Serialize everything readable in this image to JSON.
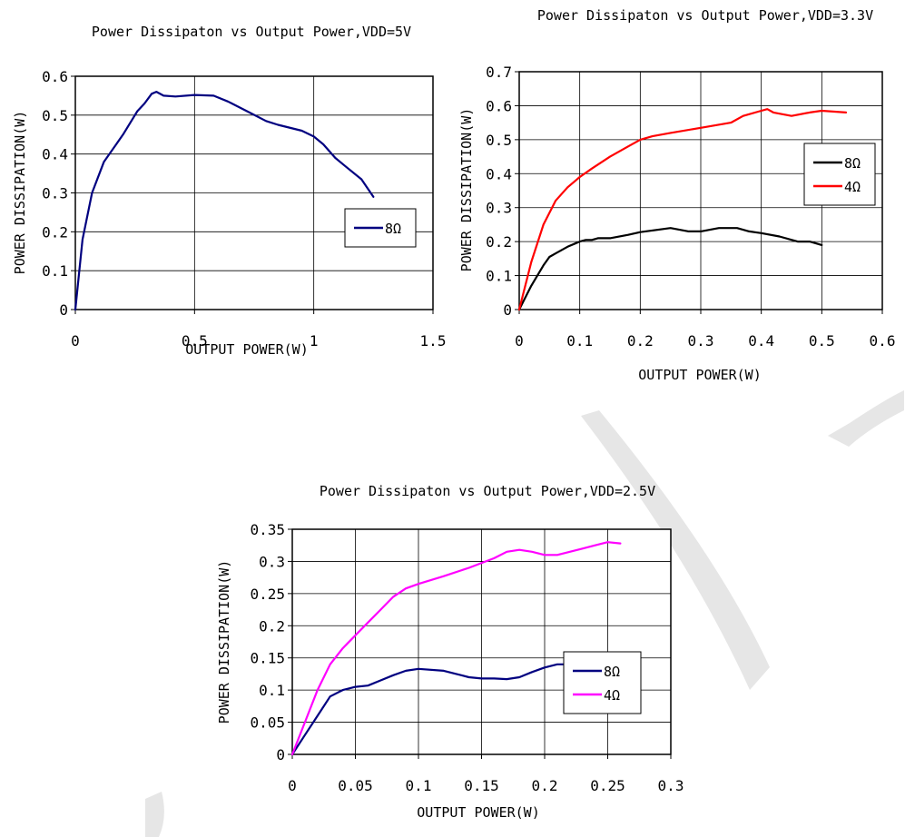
{
  "watermark": {
    "color": "#e6e6e6"
  },
  "chart_data": [
    {
      "id": "chart1",
      "type": "line",
      "title": "Power Dissipaton vs Output Power,VDD=5V",
      "xlabel": "OUTPUT POWER(W)",
      "ylabel": "POWER DISSIPATION(W)",
      "xlim": [
        0,
        1.5
      ],
      "ylim": [
        0,
        0.6
      ],
      "xticks": [
        "0",
        "0.5",
        "1",
        "1.5"
      ],
      "yticks": [
        "0",
        "0.1",
        "0.2",
        "0.3",
        "0.4",
        "0.5",
        "0.6"
      ],
      "grid": true,
      "legend_position": "right-middle",
      "series": [
        {
          "name": "8Ω",
          "color": "#000080",
          "x": [
            0,
            0.03,
            0.07,
            0.12,
            0.2,
            0.26,
            0.29,
            0.32,
            0.34,
            0.37,
            0.42,
            0.5,
            0.58,
            0.64,
            0.72,
            0.8,
            0.85,
            0.95,
            1.0,
            1.04,
            1.09,
            1.14,
            1.2,
            1.25
          ],
          "y": [
            0,
            0.18,
            0.3,
            0.38,
            0.45,
            0.51,
            0.53,
            0.555,
            0.56,
            0.55,
            0.548,
            0.552,
            0.55,
            0.535,
            0.51,
            0.485,
            0.475,
            0.46,
            0.445,
            0.425,
            0.39,
            0.365,
            0.335,
            0.29
          ]
        }
      ]
    },
    {
      "id": "chart2",
      "type": "line",
      "title": "Power Dissipaton vs Output Power,VDD=3.3V",
      "xlabel": "OUTPUT POWER(W)",
      "ylabel": "POWER DISSIPATION(W)",
      "xlim": [
        0,
        0.6
      ],
      "ylim": [
        0,
        0.7
      ],
      "xticks": [
        "0",
        "0.1",
        "0.2",
        "0.3",
        "0.4",
        "0.5",
        "0.6"
      ],
      "yticks": [
        "0",
        "0.1",
        "0.2",
        "0.3",
        "0.4",
        "0.5",
        "0.6",
        "0.7"
      ],
      "grid": true,
      "legend_position": "right-middle",
      "series": [
        {
          "name": "8Ω",
          "color": "#000000",
          "x": [
            0,
            0.02,
            0.04,
            0.05,
            0.06,
            0.08,
            0.1,
            0.11,
            0.12,
            0.13,
            0.15,
            0.18,
            0.2,
            0.25,
            0.28,
            0.3,
            0.33,
            0.35,
            0.36,
            0.38,
            0.4,
            0.43,
            0.46,
            0.48,
            0.5
          ],
          "y": [
            0,
            0.07,
            0.13,
            0.155,
            0.165,
            0.185,
            0.2,
            0.205,
            0.205,
            0.21,
            0.21,
            0.22,
            0.228,
            0.24,
            0.23,
            0.23,
            0.24,
            0.24,
            0.24,
            0.23,
            0.225,
            0.215,
            0.2,
            0.2,
            0.19
          ]
        },
        {
          "name": "4Ω",
          "color": "#ff0000",
          "x": [
            0,
            0.02,
            0.04,
            0.06,
            0.08,
            0.1,
            0.12,
            0.15,
            0.18,
            0.2,
            0.22,
            0.25,
            0.3,
            0.35,
            0.37,
            0.4,
            0.41,
            0.42,
            0.45,
            0.48,
            0.5,
            0.54
          ],
          "y": [
            0,
            0.14,
            0.25,
            0.32,
            0.36,
            0.39,
            0.415,
            0.45,
            0.48,
            0.5,
            0.51,
            0.52,
            0.535,
            0.55,
            0.57,
            0.585,
            0.59,
            0.58,
            0.57,
            0.58,
            0.585,
            0.58
          ]
        }
      ]
    },
    {
      "id": "chart3",
      "type": "line",
      "title": "Power Dissipaton vs Output Power,VDD=2.5V",
      "xlabel": "OUTPUT POWER(W)",
      "ylabel": "POWER DISSIPATION(W)",
      "xlim": [
        0,
        0.3
      ],
      "ylim": [
        0,
        0.35
      ],
      "xticks": [
        "0",
        "0.05",
        "0.1",
        "0.15",
        "0.2",
        "0.25",
        "0.3"
      ],
      "yticks": [
        "0",
        "0.05",
        "0.1",
        "0.15",
        "0.2",
        "0.25",
        "0.3",
        "0.35"
      ],
      "grid": true,
      "legend_position": "right-middle",
      "series": [
        {
          "name": "8Ω",
          "color": "#000080",
          "x": [
            0,
            0.01,
            0.02,
            0.03,
            0.04,
            0.05,
            0.06,
            0.07,
            0.08,
            0.09,
            0.1,
            0.12,
            0.13,
            0.14,
            0.15,
            0.16,
            0.17,
            0.18,
            0.19,
            0.2,
            0.21,
            0.22
          ],
          "y": [
            0,
            0.03,
            0.06,
            0.09,
            0.1,
            0.105,
            0.107,
            0.115,
            0.123,
            0.13,
            0.133,
            0.13,
            0.125,
            0.12,
            0.118,
            0.118,
            0.117,
            0.12,
            0.128,
            0.135,
            0.14,
            0.14
          ]
        },
        {
          "name": "4Ω",
          "color": "#ff00ff",
          "x": [
            0,
            0.01,
            0.02,
            0.03,
            0.04,
            0.05,
            0.06,
            0.07,
            0.08,
            0.09,
            0.1,
            0.12,
            0.14,
            0.16,
            0.17,
            0.18,
            0.19,
            0.2,
            0.21,
            0.22,
            0.23,
            0.24,
            0.25,
            0.26
          ],
          "y": [
            0,
            0.05,
            0.1,
            0.14,
            0.165,
            0.185,
            0.205,
            0.225,
            0.245,
            0.258,
            0.265,
            0.277,
            0.29,
            0.305,
            0.315,
            0.318,
            0.315,
            0.31,
            0.31,
            0.315,
            0.32,
            0.325,
            0.33,
            0.328
          ]
        }
      ]
    }
  ]
}
